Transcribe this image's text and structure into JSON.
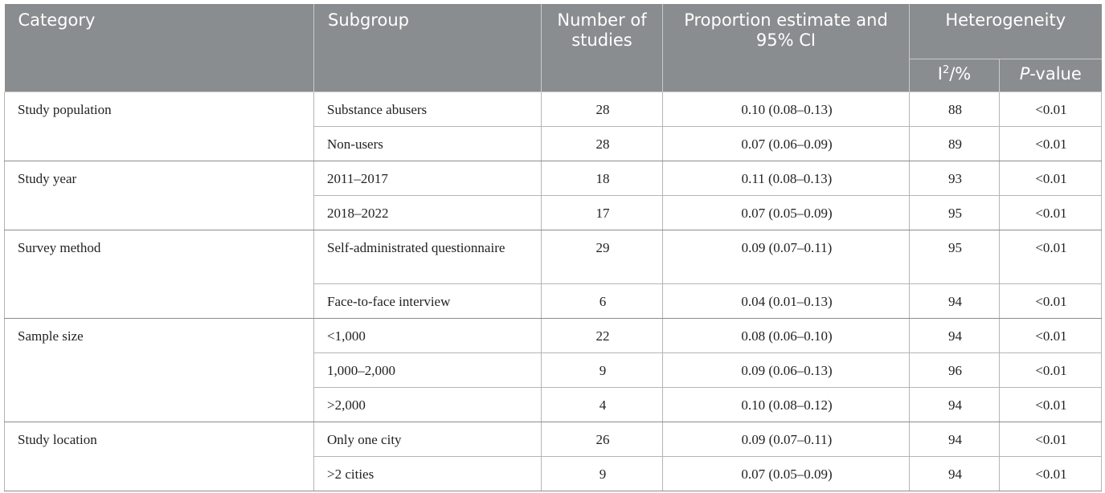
{
  "header": {
    "category": "Category",
    "subgroup": "Subgroup",
    "num_studies": "Number of studies",
    "proportion": "Proportion estimate and 95% CI",
    "heterogeneity": "Heterogeneity",
    "i2_base": "I",
    "i2_sup": "2",
    "i2_suffix": "/%",
    "p_italic": "P",
    "p_suffix": "-value"
  },
  "groups": [
    {
      "category": "Study population",
      "rows": [
        {
          "subgroup": "Substance abusers",
          "n": "28",
          "estimate": "0.10 (0.08–0.13)",
          "i2": "88",
          "p": "<0.01"
        },
        {
          "subgroup": "Non-users",
          "n": "28",
          "estimate": "0.07 (0.06–0.09)",
          "i2": "89",
          "p": "<0.01"
        }
      ]
    },
    {
      "category": "Study year",
      "rows": [
        {
          "subgroup": "2011–2017",
          "n": "18",
          "estimate": "0.11 (0.08–0.13)",
          "i2": "93",
          "p": "<0.01"
        },
        {
          "subgroup": "2018–2022",
          "n": "17",
          "estimate": "0.07 (0.05–0.09)",
          "i2": "95",
          "p": "<0.01"
        }
      ]
    },
    {
      "category": "Survey method",
      "rows": [
        {
          "subgroup": "Self-administrated questionnaire",
          "n": "29",
          "estimate": "0.09 (0.07–0.11)",
          "i2": "95",
          "p": "<0.01"
        },
        {
          "subgroup": "Face-to-face interview",
          "n": "6",
          "estimate": "0.04 (0.01–0.13)",
          "i2": "94",
          "p": "<0.01"
        }
      ]
    },
    {
      "category": "Sample size",
      "rows": [
        {
          "subgroup": "<1,000",
          "n": "22",
          "estimate": "0.08 (0.06–0.10)",
          "i2": "94",
          "p": "<0.01"
        },
        {
          "subgroup": "1,000–2,000",
          "n": "9",
          "estimate": "0.09 (0.06–0.13)",
          "i2": "96",
          "p": "<0.01"
        },
        {
          "subgroup": ">2,000",
          "n": "4",
          "estimate": "0.10 (0.08–0.12)",
          "i2": "94",
          "p": "<0.01"
        }
      ]
    },
    {
      "category": "Study location",
      "rows": [
        {
          "subgroup": "Only one city",
          "n": "26",
          "estimate": "0.09 (0.07–0.11)",
          "i2": "94",
          "p": "<0.01"
        },
        {
          "subgroup": ">2 cities",
          "n": "9",
          "estimate": "0.07 (0.05–0.09)",
          "i2": "94",
          "p": "<0.01"
        }
      ]
    }
  ]
}
